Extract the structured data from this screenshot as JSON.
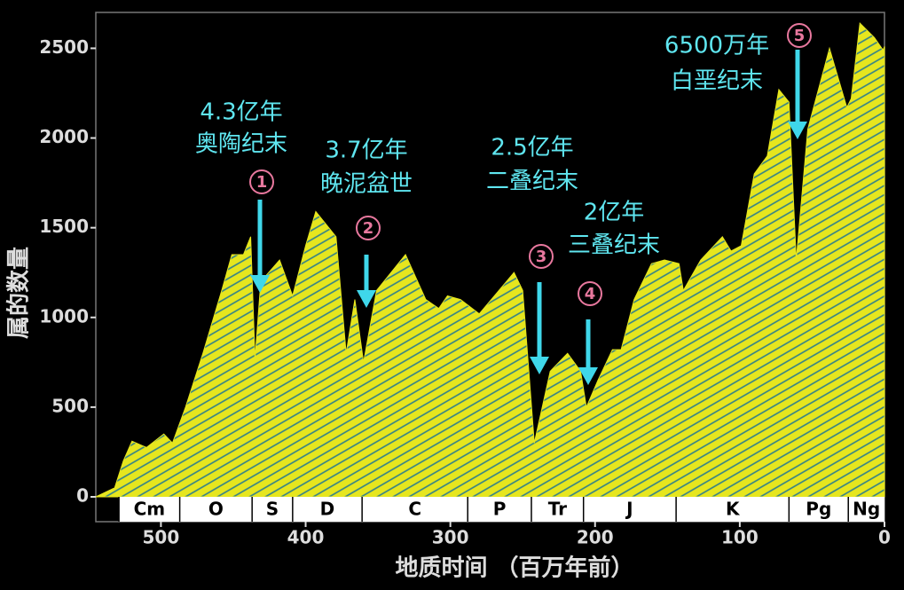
{
  "chart_data": {
    "type": "area",
    "x_label": "地质时间 （百万年前）",
    "y_label": "属的数量",
    "x": [
      545,
      532,
      526,
      520,
      510,
      498,
      492,
      483,
      471,
      458,
      451,
      443,
      438,
      435,
      431,
      418,
      409,
      400,
      393,
      379,
      372,
      366,
      360,
      351,
      331,
      317,
      308,
      302,
      293,
      280,
      256,
      250,
      242,
      231,
      219,
      210,
      206,
      198,
      188,
      182,
      173,
      161,
      152,
      142,
      139,
      127,
      112,
      106,
      99,
      90,
      81,
      73,
      66,
      61,
      53,
      38,
      26,
      23,
      17,
      7,
      1,
      0
    ],
    "values": [
      0,
      50,
      200,
      310,
      275,
      350,
      300,
      500,
      800,
      1150,
      1350,
      1350,
      1450,
      770,
      1200,
      1320,
      1120,
      1400,
      1590,
      1450,
      800,
      1100,
      750,
      1150,
      1350,
      1100,
      1050,
      1120,
      1100,
      1020,
      1250,
      1150,
      300,
      700,
      800,
      700,
      500,
      650,
      820,
      820,
      1100,
      1300,
      1320,
      1300,
      1150,
      1320,
      1450,
      1370,
      1400,
      1800,
      1900,
      2270,
      2200,
      1320,
      2050,
      2500,
      2170,
      2220,
      2640,
      2560,
      2490,
      2510
    ],
    "color": "#e6e61e",
    "hatch_color": "#2f7f8c",
    "xlim": [
      545,
      0
    ],
    "ylim": [
      0,
      2700
    ],
    "xticks": [
      500,
      400,
      300,
      200,
      100,
      0
    ],
    "yticks": [
      0,
      500,
      1000,
      1500,
      2000,
      2500
    ],
    "periods": [
      {
        "name": "Cm",
        "start": 529,
        "end": 487
      },
      {
        "name": "O",
        "start": 487,
        "end": 437
      },
      {
        "name": "S",
        "start": 437,
        "end": 409
      },
      {
        "name": "D",
        "start": 409,
        "end": 361
      },
      {
        "name": "C",
        "start": 361,
        "end": 288
      },
      {
        "name": "P",
        "start": 288,
        "end": 244
      },
      {
        "name": "Tr",
        "start": 244,
        "end": 208
      },
      {
        "name": "J",
        "start": 208,
        "end": 144
      },
      {
        "name": "K",
        "start": 144,
        "end": 66
      },
      {
        "name": "Pg",
        "start": 66,
        "end": 25
      },
      {
        "name": "Ng",
        "start": 25,
        "end": 0
      }
    ],
    "events": [
      {
        "marker": "1",
        "label": [
          "4.3亿年",
          "奥陶纪末"
        ]
      },
      {
        "marker": "2",
        "label": [
          "3.7亿年",
          "晚泥盆世"
        ]
      },
      {
        "marker": "3",
        "label": [
          "2.5亿年",
          "二叠纪末"
        ]
      },
      {
        "marker": "4",
        "label": [
          "2亿年",
          "三叠纪末"
        ]
      },
      {
        "marker": "5",
        "label": [
          "6500万年",
          "白垩纪末"
        ]
      }
    ]
  }
}
